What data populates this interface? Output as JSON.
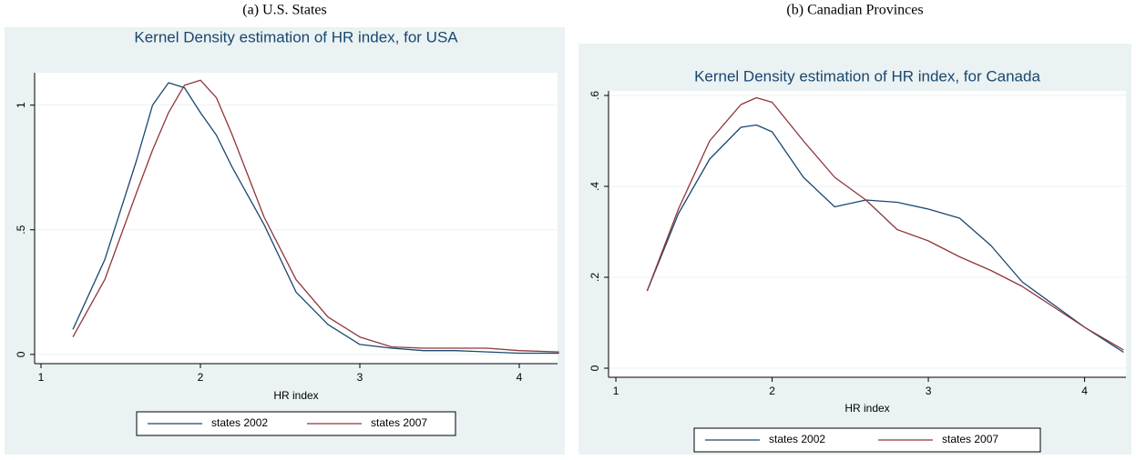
{
  "chart_data": [
    {
      "type": "line",
      "caption": "(a) U.S. States",
      "title": "Kernel Density estimation of HR index, for USA",
      "x_label": "HR index",
      "x": [
        1.2,
        1.4,
        1.6,
        1.7,
        1.8,
        1.9,
        2.0,
        2.1,
        2.2,
        2.4,
        2.6,
        2.8,
        3.0,
        3.2,
        3.4,
        3.6,
        3.8,
        4.0,
        4.25
      ],
      "series": [
        {
          "name": "states 2002",
          "color": "#1a476f",
          "values": [
            0.1,
            0.38,
            0.78,
            1.0,
            1.09,
            1.07,
            0.97,
            0.88,
            0.75,
            0.52,
            0.25,
            0.12,
            0.04,
            0.025,
            0.015,
            0.015,
            0.01,
            0.005,
            0.005
          ]
        },
        {
          "name": "states 2007",
          "color": "#90353b",
          "values": [
            0.07,
            0.3,
            0.65,
            0.82,
            0.97,
            1.08,
            1.1,
            1.03,
            0.88,
            0.55,
            0.3,
            0.15,
            0.07,
            0.03,
            0.025,
            0.025,
            0.025,
            0.015,
            0.01
          ]
        }
      ],
      "xlim": [
        0.96,
        4.24
      ],
      "xticks": [
        1,
        2,
        3,
        4
      ],
      "ylim": [
        -0.037,
        1.13
      ],
      "yticks": [
        0,
        {
          "value": 0.5,
          "label": ".5"
        },
        1
      ],
      "grid": true
    },
    {
      "type": "line",
      "caption": "(b) Canadian Provinces",
      "title": "Kernel Density estimation of HR index, for Canada",
      "x_label": "HR index",
      "x": [
        1.2,
        1.4,
        1.6,
        1.8,
        1.9,
        2.0,
        2.2,
        2.4,
        2.6,
        2.8,
        3.0,
        3.2,
        3.4,
        3.6,
        3.8,
        4.0,
        4.25
      ],
      "series": [
        {
          "name": "states 2002",
          "color": "#1a476f",
          "values": [
            0.17,
            0.34,
            0.46,
            0.53,
            0.535,
            0.52,
            0.42,
            0.355,
            0.37,
            0.365,
            0.35,
            0.33,
            0.27,
            0.19,
            0.14,
            0.09,
            0.035
          ]
        },
        {
          "name": "states 2007",
          "color": "#90353b",
          "values": [
            0.17,
            0.35,
            0.5,
            0.58,
            0.595,
            0.585,
            0.5,
            0.42,
            0.37,
            0.305,
            0.28,
            0.245,
            0.215,
            0.18,
            0.135,
            0.09,
            0.04
          ]
        }
      ],
      "xlim": [
        0.953,
        4.265
      ],
      "xticks": [
        1,
        2,
        3,
        4
      ],
      "ylim": [
        -0.02,
        0.61
      ],
      "yticks": [
        0,
        {
          "value": 0.2,
          "label": ".2"
        },
        {
          "value": 0.4,
          "label": ".4"
        },
        {
          "value": 0.6,
          "label": ".6"
        }
      ],
      "grid": true
    }
  ]
}
